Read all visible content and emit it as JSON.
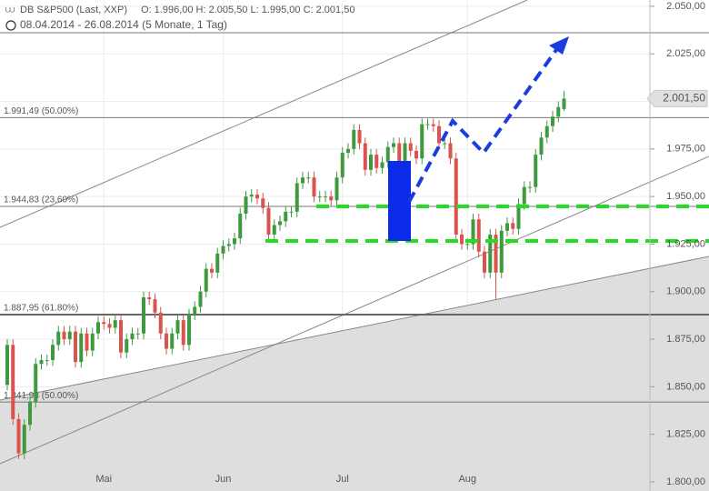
{
  "chart_data": {
    "type": "candlestick",
    "title": "DB S&P500 (Last, XXP)",
    "quote": "O: 1.996,00   H: 2.005,50   L: 1.995,00   C: 2.001,50",
    "subtitle": "08.04.2014 - 26.08.2014 (5 Monate, 1 Tag)",
    "categories": [
      null,
      null,
      null,
      null,
      null,
      null,
      null,
      null,
      null,
      null,
      null,
      null,
      null,
      null,
      null,
      null,
      null,
      "Mai",
      null,
      null,
      null,
      null,
      null,
      null,
      null,
      null,
      null,
      null,
      null,
      null,
      null,
      null,
      null,
      null,
      null,
      null,
      null,
      null,
      "Jun",
      null,
      null,
      null,
      null,
      null,
      null,
      null,
      null,
      null,
      null,
      null,
      null,
      null,
      null,
      null,
      null,
      null,
      null,
      null,
      null,
      "Jul",
      null,
      null,
      null,
      null,
      null,
      null,
      null,
      null,
      null,
      null,
      null,
      null,
      null,
      null,
      null,
      null,
      null,
      null,
      null,
      null,
      null,
      "Aug",
      null,
      null,
      null,
      null,
      null,
      null,
      null,
      null,
      null,
      null,
      null,
      null,
      null,
      null,
      null,
      null,
      null
    ],
    "open": [
      1851,
      1872,
      1833,
      1815,
      1830,
      1842,
      1862,
      1864,
      1864,
      1872,
      1879,
      1875,
      1879,
      1863,
      1878,
      1869,
      1878,
      1884,
      1883,
      1881,
      1885,
      1868,
      1875,
      1878,
      1878,
      1897,
      1896,
      1889,
      1878,
      1870,
      1878,
      1885,
      1872,
      1888,
      1892,
      1900,
      1912,
      1910,
      1920,
      1924,
      1925,
      1928,
      1941,
      1950,
      1951,
      1949,
      1944,
      1930,
      1935,
      1937,
      1942,
      1942,
      1957,
      1960,
      1960,
      1950,
      1950,
      1950,
      1948,
      1960,
      1973,
      1975,
      1985,
      1978,
      1964,
      1972,
      1965,
      1968,
      1976,
      1978,
      1958,
      1978,
      1974,
      1970,
      1988,
      1988,
      1987,
      1978,
      1978,
      1970,
      1930,
      1925,
      1925,
      1938,
      1921,
      1910,
      1930,
      1910,
      1932,
      1936,
      1933,
      1946,
      1955,
      1955,
      1972,
      1981,
      1987,
      1992,
      1996
    ],
    "high": [
      1875,
      1875,
      1836,
      1833,
      1845,
      1865,
      1867,
      1867,
      1875,
      1882,
      1882,
      1882,
      1882,
      1881,
      1881,
      1881,
      1887,
      1887,
      1886,
      1888,
      1888,
      1878,
      1881,
      1881,
      1900,
      1900,
      1899,
      1892,
      1881,
      1881,
      1888,
      1888,
      1891,
      1895,
      1903,
      1915,
      1915,
      1923,
      1927,
      1928,
      1931,
      1944,
      1953,
      1954,
      1954,
      1952,
      1947,
      1938,
      1940,
      1945,
      1945,
      1960,
      1963,
      1963,
      1963,
      1953,
      1953,
      1953,
      1963,
      1976,
      1978,
      1988,
      1988,
      1981,
      1975,
      1975,
      1971,
      1979,
      1981,
      1981,
      1981,
      1981,
      1977,
      1991,
      1991,
      1991,
      1990,
      1981,
      1981,
      1973,
      1933,
      1928,
      1941,
      1941,
      1924,
      1933,
      1933,
      1935,
      1939,
      1939,
      1949,
      1958,
      1958,
      1975,
      1984,
      1990,
      1995,
      2000,
      2005.5
    ],
    "low": [
      1848,
      1830,
      1812,
      1812,
      1827,
      1839,
      1859,
      1861,
      1861,
      1869,
      1872,
      1872,
      1860,
      1860,
      1866,
      1866,
      1875,
      1880,
      1878,
      1878,
      1865,
      1865,
      1872,
      1875,
      1875,
      1893,
      1886,
      1875,
      1867,
      1867,
      1875,
      1869,
      1869,
      1885,
      1889,
      1897,
      1907,
      1907,
      1917,
      1921,
      1922,
      1925,
      1938,
      1947,
      1946,
      1941,
      1927,
      1927,
      1932,
      1934,
      1939,
      1939,
      1954,
      1957,
      1947,
      1947,
      1947,
      1945,
      1945,
      1957,
      1970,
      1972,
      1975,
      1961,
      1961,
      1962,
      1962,
      1965,
      1973,
      1955,
      1955,
      1971,
      1967,
      1967,
      1985,
      1984,
      1975,
      1975,
      1967,
      1927,
      1922,
      1922,
      1922,
      1918,
      1907,
      1907,
      1896,
      1907,
      1929,
      1930,
      1930,
      1943,
      1952,
      1952,
      1969,
      1978,
      1984,
      1989,
      1995
    ],
    "close": [
      1872,
      1833,
      1815,
      1830,
      1842,
      1862,
      1864,
      1864,
      1872,
      1879,
      1875,
      1879,
      1863,
      1878,
      1869,
      1878,
      1884,
      1883,
      1881,
      1885,
      1868,
      1875,
      1878,
      1878,
      1897,
      1896,
      1889,
      1878,
      1870,
      1878,
      1885,
      1872,
      1888,
      1892,
      1900,
      1912,
      1910,
      1920,
      1924,
      1925,
      1928,
      1941,
      1950,
      1951,
      1949,
      1944,
      1930,
      1935,
      1937,
      1942,
      1942,
      1957,
      1960,
      1960,
      1950,
      1950,
      1950,
      1948,
      1960,
      1973,
      1975,
      1985,
      1978,
      1964,
      1972,
      1965,
      1968,
      1976,
      1978,
      1958,
      1978,
      1974,
      1970,
      1988,
      1988,
      1987,
      1978,
      1978,
      1970,
      1930,
      1925,
      1925,
      1938,
      1921,
      1910,
      1930,
      1910,
      1932,
      1936,
      1933,
      1946,
      1955,
      1955,
      1972,
      1981,
      1987,
      1992,
      1997,
      2001.5
    ],
    "up_color": "#3f9a3f",
    "down_color": "#d9534f",
    "ylim": [
      1795.2,
      2053.3
    ],
    "yticks": [
      {
        "value": 1800,
        "label": "1.800,00"
      },
      {
        "value": 1825,
        "label": "1.825,00"
      },
      {
        "value": 1850,
        "label": "1.850,00"
      },
      {
        "value": 1875,
        "label": "1.875,00"
      },
      {
        "value": 1900,
        "label": "1.900,00"
      },
      {
        "value": 1925,
        "label": "1.925,00"
      },
      {
        "value": 1950,
        "label": "1.950,00"
      },
      {
        "value": 1975,
        "label": "1.975,00"
      },
      {
        "value": 2000,
        "label": "2.000,00"
      },
      {
        "value": 2025,
        "label": "2.025,00"
      },
      {
        "value": 2050,
        "label": "2.050,00"
      }
    ],
    "levels": [
      {
        "value": 1991.49,
        "label": "1.991,49 (50.00%)"
      },
      {
        "value": 1944.83,
        "label": "1.944,83 (23.60%)"
      },
      {
        "value": 1887.95,
        "label": "1.887,95 (61.80%)"
      },
      {
        "value": 1841.98,
        "label": "1.841,98 (50.00%)"
      }
    ],
    "last_price": {
      "value": 2001.5,
      "label": "2.001,50"
    },
    "grid": true
  }
}
